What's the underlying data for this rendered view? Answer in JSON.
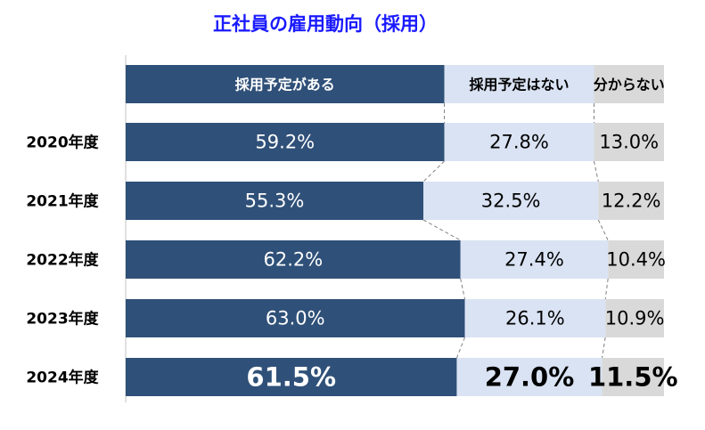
{
  "colors": {
    "title": "#1a1aff",
    "series_fills": [
      "#2f5078",
      "#dae3f3",
      "#d9d9d9"
    ],
    "series_text": [
      "#ffffff",
      "#000000",
      "#000000"
    ],
    "connector": "#808080",
    "axis_line": "#c0c0c0",
    "category_text": "#000000"
  },
  "chart_data": {
    "type": "bar",
    "orientation": "horizontal",
    "stacked": true,
    "title": "正社員の雇用動向（採用）",
    "legend_position": "top",
    "categories": [
      "2020年度",
      "2021年度",
      "2022年度",
      "2023年度",
      "2024年度"
    ],
    "series": [
      {
        "name": "採用予定がある",
        "values": [
          59.2,
          55.3,
          62.2,
          63.0,
          61.5
        ],
        "labels": [
          "59.2%",
          "55.3%",
          "62.2%",
          "63.0%",
          "61.5%"
        ]
      },
      {
        "name": "採用予定はない",
        "values": [
          27.8,
          32.5,
          27.4,
          26.1,
          27.0
        ],
        "labels": [
          "27.8%",
          "32.5%",
          "27.4%",
          "26.1%",
          "27.0%"
        ]
      },
      {
        "name": "分からない",
        "values": [
          13.0,
          12.2,
          10.4,
          10.9,
          11.5
        ],
        "labels": [
          "13.0%",
          "12.2%",
          "10.4%",
          "10.9%",
          "11.5%"
        ]
      }
    ],
    "highlight_category": "2024年度",
    "xlim": [
      0,
      100
    ]
  }
}
